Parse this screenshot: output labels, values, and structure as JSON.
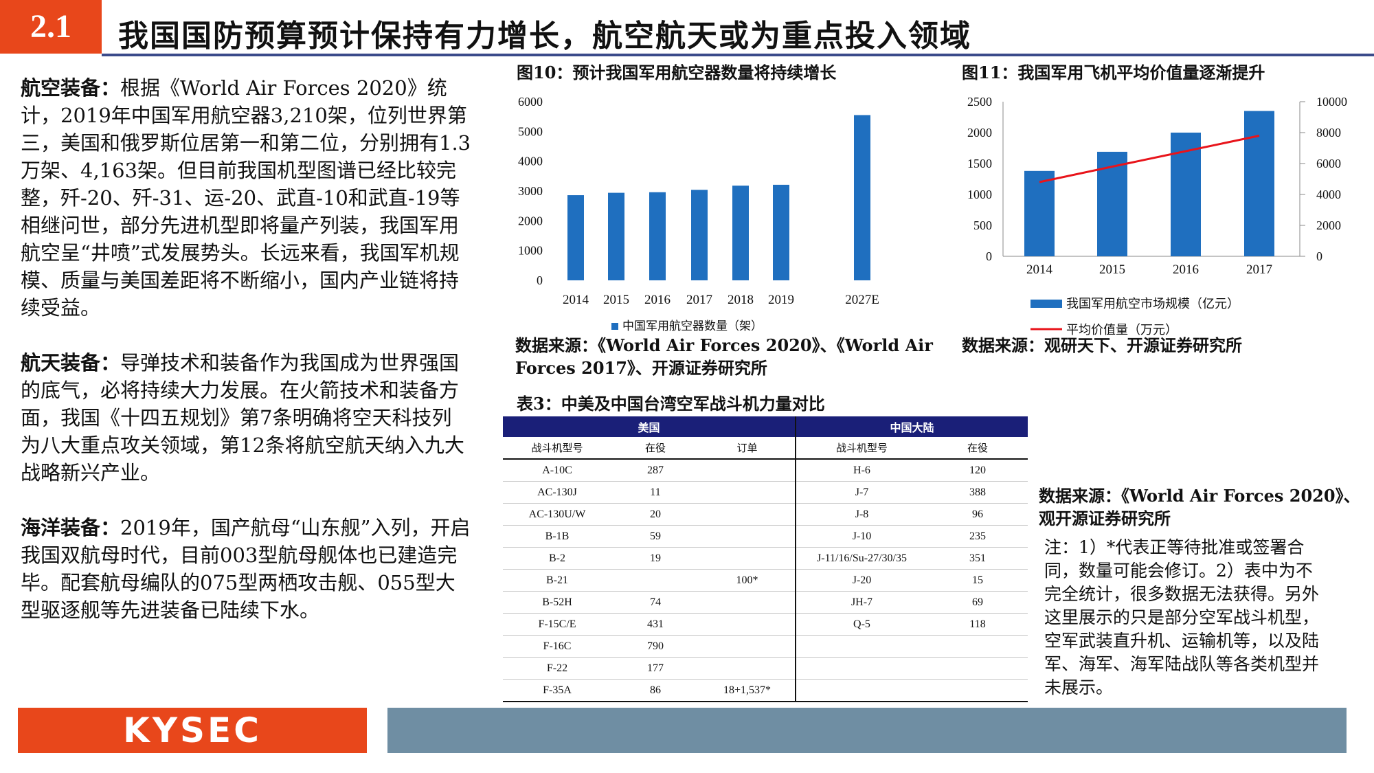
{
  "header": {
    "section": "2.1",
    "title": "我国国防预算预计保持有力增长，航空航天或为重点投入领域"
  },
  "paragraphs": [
    {
      "lead": "航空装备：",
      "text": "根据《World Air Forces 2020》统计，2019年中国军用航空器3,210架，位列世界第三，美国和俄罗斯位居第一和第二位，分别拥有1.3万架、4,163架。但目前我国机型图谱已经比较完整，歼-20、歼-31、运-20、武直-10和武直-19等相继问世，部分先进机型即将量产列装，我国军用航空呈“井喷”式发展势头。长远来看，我国军机规模、质量与美国差距将不断缩小，国内产业链将持续受益。"
    },
    {
      "lead": "航天装备：",
      "text": "导弹技术和装备作为我国成为世界强国的底气，必将持续大力发展。在火箭技术和装备方面，我国《十四五规划》第7条明确将空天科技列为八大重点攻关领域，第12条将航空航天纳入九大战略新兴产业。"
    },
    {
      "lead": "海洋装备：",
      "text": "2019年，国产航母“山东舰”入列，开启我国双航母时代，目前003型航母舰体也已建造完毕。配套航母编队的075型两栖攻击舰、055型大型驱逐舰等先进装备已陆续下水。"
    }
  ],
  "fig10": {
    "title": "图10：预计我国军用航空器数量将持续增长",
    "source": "数据来源：《World Air Forces 2020》、《World Air Forces 2017》、开源证券研究所"
  },
  "fig11": {
    "title": "图11：我国军用飞机平均价值量逐渐提升",
    "source": "数据来源：观研天下、开源证券研究所"
  },
  "chart_data": [
    {
      "type": "bar",
      "categories": [
        "2014",
        "2015",
        "2016",
        "2017",
        "2018",
        "2019",
        "2027E"
      ],
      "series": [
        {
          "name": "中国军用航空器数量（架）",
          "values": [
            2860,
            2940,
            2960,
            3040,
            3180,
            3210,
            5550
          ],
          "color": "#1f6fbf"
        }
      ],
      "ylim": [
        0,
        6000
      ],
      "yticks": [
        "6000",
        "5000",
        "4000",
        "3000",
        "2000",
        "1000",
        "0"
      ],
      "legend": "bottom"
    },
    {
      "type": "bar",
      "categories": [
        "2014",
        "2015",
        "2016",
        "2017"
      ],
      "series": [
        {
          "name": "我国军用航空市场规模（亿元）",
          "type": "bar",
          "axis": "left",
          "values": [
            1380,
            1690,
            2000,
            2350
          ],
          "color": "#1f6fbf"
        },
        {
          "name": "平均价值量（万元）",
          "type": "line",
          "axis": "right",
          "values": [
            4800,
            5800,
            6800,
            7800
          ],
          "color": "#e8141b"
        }
      ],
      "ylim": [
        0,
        2500
      ],
      "y2lim": [
        0,
        10000
      ],
      "yticks": [
        "2500",
        "2000",
        "1500",
        "1000",
        "500",
        "0"
      ],
      "y2ticks": [
        "10000",
        "8000",
        "6000",
        "4000",
        "2000",
        "0"
      ],
      "legend": "bottom"
    }
  ],
  "table3": {
    "title": "表3：中美及中国台湾空军战斗机力量对比",
    "group_us": "美国",
    "group_cn": "中国大陆",
    "columns": [
      "战斗机型号",
      "在役",
      "订单",
      "战斗机型号",
      "在役"
    ],
    "rows": [
      [
        "A-10C",
        "287",
        "",
        "H-6",
        "120"
      ],
      [
        "AC-130J",
        "11",
        "",
        "J-7",
        "388"
      ],
      [
        "AC-130U/W",
        "20",
        "",
        "J-8",
        "96"
      ],
      [
        "B-1B",
        "59",
        "",
        "J-10",
        "235"
      ],
      [
        "B-2",
        "19",
        "",
        "J-11/16/Su-27/30/35",
        "351"
      ],
      [
        "B-21",
        "",
        "100*",
        "J-20",
        "15"
      ],
      [
        "B-52H",
        "74",
        "",
        "JH-7",
        "69"
      ],
      [
        "F-15C/E",
        "431",
        "",
        "Q-5",
        "118"
      ],
      [
        "F-16C",
        "790",
        "",
        "",
        ""
      ],
      [
        "F-22",
        "177",
        "",
        "",
        ""
      ],
      [
        "F-35A",
        "86",
        "18+1,537*",
        "",
        ""
      ]
    ],
    "source": "数据来源：《World Air Forces 2020》、观开源证券研究所",
    "note": "注：1）*代表正等待批准或签署合同，数量可能会修订。2）表中为不完全统计，很多数据无法获得。另外这里展示的只是部分空军战斗机型，空军武装直升机、运输机等，以及陆军、海军、海军陆战队等各类机型并未展示。"
  },
  "footer": {
    "logo": "KYSEC"
  }
}
